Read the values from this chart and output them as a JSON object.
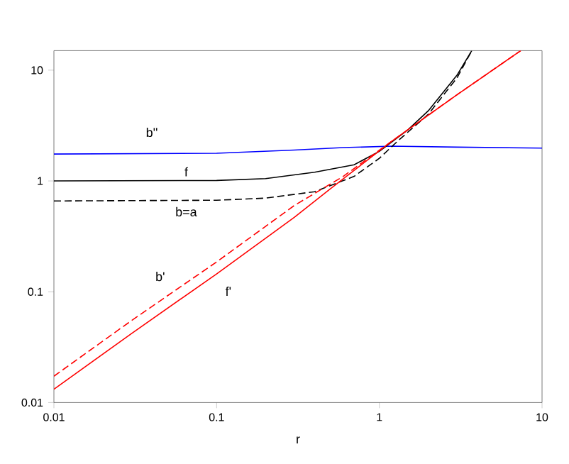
{
  "chart_data": {
    "type": "line",
    "xlabel": "r",
    "log": "xy",
    "xlim": [
      0.01,
      10
    ],
    "ylim": [
      0.01,
      15
    ],
    "xticks": [
      0.01,
      0.1,
      1,
      10
    ],
    "yticks": [
      0.01,
      0.1,
      1,
      10
    ],
    "grid": false,
    "legend": false,
    "marker": "none",
    "series": [
      {
        "name": "b''",
        "color": "#0000ff",
        "line_style": "solid",
        "x": [
          0.01,
          0.1,
          0.3,
          0.6,
          1.2,
          3,
          10
        ],
        "values": [
          1.75,
          1.78,
          1.9,
          2.0,
          2.06,
          2.02,
          1.98
        ]
      },
      {
        "name": "f",
        "color": "#000000",
        "line_style": "solid",
        "x": [
          0.01,
          0.1,
          0.2,
          0.4,
          0.7,
          1,
          1.5,
          2,
          3,
          3.7
        ],
        "values": [
          1,
          1.01,
          1.05,
          1.2,
          1.4,
          1.85,
          2.9,
          4.3,
          9,
          15
        ]
      },
      {
        "name": "b=a",
        "color": "#000000",
        "line_style": "dashed",
        "x": [
          0.01,
          0.1,
          0.2,
          0.4,
          0.7,
          1,
          1.3,
          2,
          3,
          3.7
        ],
        "values": [
          0.66,
          0.67,
          0.7,
          0.8,
          1.1,
          1.6,
          2.3,
          4.0,
          8.5,
          15
        ]
      },
      {
        "name": "b'",
        "color": "#ff0000",
        "line_style": "dashed",
        "x": [
          0.01,
          0.03,
          0.1,
          0.3,
          0.6,
          1.2,
          3,
          7.4
        ],
        "values": [
          0.0173,
          0.055,
          0.186,
          0.6,
          1.1,
          2.3,
          6.0,
          15
        ]
      },
      {
        "name": "f'",
        "color": "#ff0000",
        "line_style": "solid",
        "x": [
          0.01,
          0.03,
          0.1,
          0.3,
          0.5,
          1.2,
          3,
          7.4
        ],
        "values": [
          0.0132,
          0.042,
          0.145,
          0.47,
          0.85,
          2.3,
          6.0,
          15
        ]
      }
    ]
  }
}
